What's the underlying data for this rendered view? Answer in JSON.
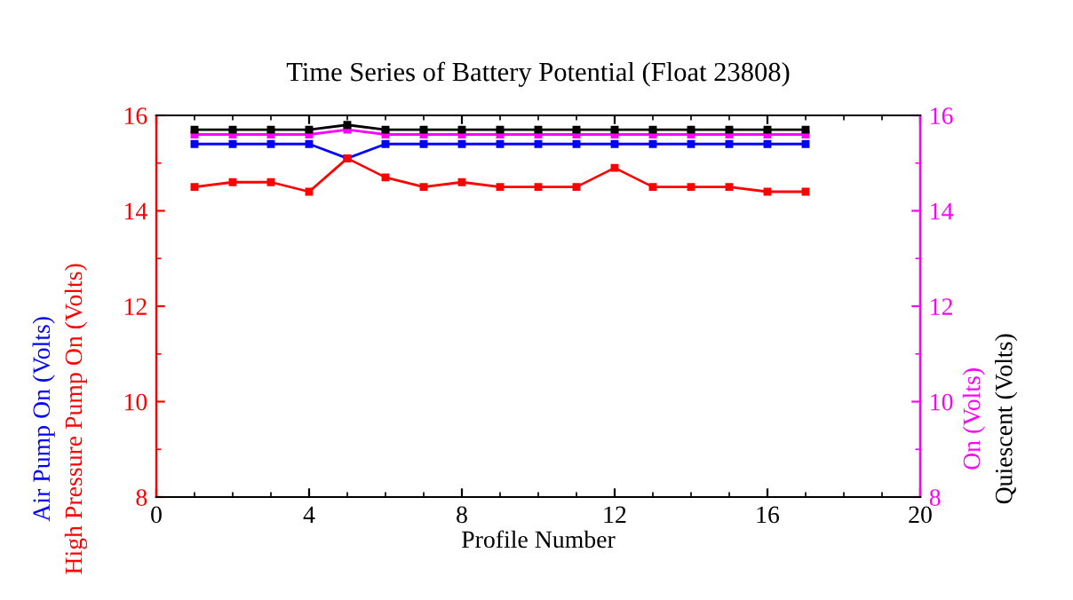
{
  "chart_data": {
    "type": "line",
    "title": "Time Series of Battery Potential (Float 23808)",
    "xlabel": "Profile Number",
    "x": [
      1,
      2,
      3,
      4,
      5,
      6,
      7,
      8,
      9,
      10,
      11,
      12,
      13,
      14,
      15,
      16,
      17
    ],
    "series": [
      {
        "name": "Air Pump On (Volts)",
        "color": "#0000ff",
        "values": [
          15.4,
          15.4,
          15.4,
          15.4,
          15.1,
          15.4,
          15.4,
          15.4,
          15.4,
          15.4,
          15.4,
          15.4,
          15.4,
          15.4,
          15.4,
          15.4,
          15.4
        ]
      },
      {
        "name": "High Pressure Pump On (Volts)",
        "color": "#ff0000",
        "values": [
          14.5,
          14.6,
          14.6,
          14.4,
          15.1,
          14.7,
          14.5,
          14.6,
          14.5,
          14.5,
          14.5,
          14.9,
          14.5,
          14.5,
          14.5,
          14.4,
          14.4
        ]
      },
      {
        "name": "On (Volts)",
        "color": "#ff00ff",
        "axis": "y2",
        "values": [
          15.6,
          15.6,
          15.6,
          15.6,
          15.7,
          15.6,
          15.6,
          15.6,
          15.6,
          15.6,
          15.6,
          15.6,
          15.6,
          15.6,
          15.6,
          15.6,
          15.6
        ]
      },
      {
        "name": "Quiescent (Volts)",
        "color": "#000000",
        "axis": "y2",
        "values": [
          15.7,
          15.7,
          15.7,
          15.7,
          15.8,
          15.7,
          15.7,
          15.7,
          15.7,
          15.7,
          15.7,
          15.7,
          15.7,
          15.7,
          15.7,
          15.7,
          15.7
        ]
      }
    ],
    "xlim": [
      0,
      20
    ],
    "xticks": [
      0,
      4,
      8,
      12,
      16,
      20
    ],
    "ylim": [
      8,
      16
    ],
    "yticks": [
      8,
      10,
      12,
      14,
      16
    ],
    "y2lim": [
      8,
      16
    ],
    "y2ticks": [
      8,
      10,
      12,
      14,
      16
    ],
    "marker": "square",
    "line_style": "solid",
    "grid": false,
    "legend": false
  }
}
